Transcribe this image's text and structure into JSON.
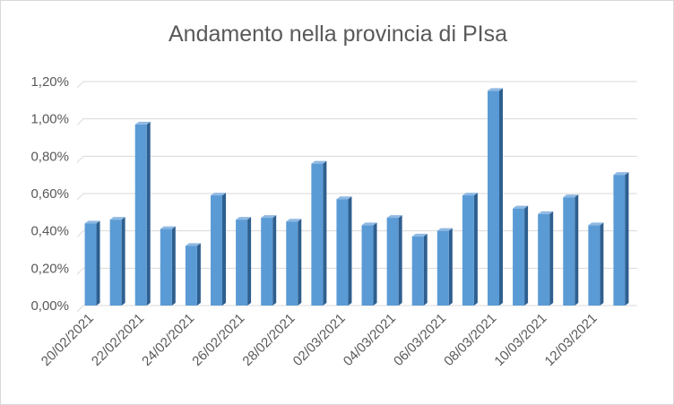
{
  "chart_data": {
    "type": "bar",
    "title": "Andamento nella provincia di PIsa",
    "xlabel": "",
    "ylabel": "",
    "ylim": [
      0,
      0.012
    ],
    "y_ticks": [
      "0,00%",
      "0,20%",
      "0,40%",
      "0,60%",
      "0,80%",
      "1,00%",
      "1,20%"
    ],
    "x_tick_labels": [
      "20/02/2021",
      "22/02/2021",
      "24/02/2021",
      "26/02/2021",
      "28/02/2021",
      "02/03/2021",
      "04/03/2021",
      "06/03/2021",
      "08/03/2021",
      "10/03/2021",
      "12/03/2021"
    ],
    "categories": [
      "20/02/2021",
      "21/02/2021",
      "22/02/2021",
      "23/02/2021",
      "24/02/2021",
      "25/02/2021",
      "26/02/2021",
      "27/02/2021",
      "28/02/2021",
      "01/03/2021",
      "02/03/2021",
      "03/03/2021",
      "04/03/2021",
      "05/03/2021",
      "06/03/2021",
      "07/03/2021",
      "08/03/2021",
      "09/03/2021",
      "10/03/2021",
      "11/03/2021",
      "12/03/2021",
      "13/03/2021"
    ],
    "values": [
      0.0044,
      0.0046,
      0.0097,
      0.0041,
      0.0032,
      0.0059,
      0.0046,
      0.0047,
      0.0045,
      0.0076,
      0.0057,
      0.0043,
      0.0047,
      0.0037,
      0.004,
      0.0059,
      0.0115,
      0.0052,
      0.0049,
      0.0058,
      0.0043,
      0.007
    ],
    "grid": true,
    "legend": "none",
    "colors": {
      "bar_front": "#5b9bd5",
      "bar_side": "#2e5f8f",
      "bar_top": "#8fb9e3",
      "grid": "#d9d9d9",
      "text": "#595959"
    }
  }
}
